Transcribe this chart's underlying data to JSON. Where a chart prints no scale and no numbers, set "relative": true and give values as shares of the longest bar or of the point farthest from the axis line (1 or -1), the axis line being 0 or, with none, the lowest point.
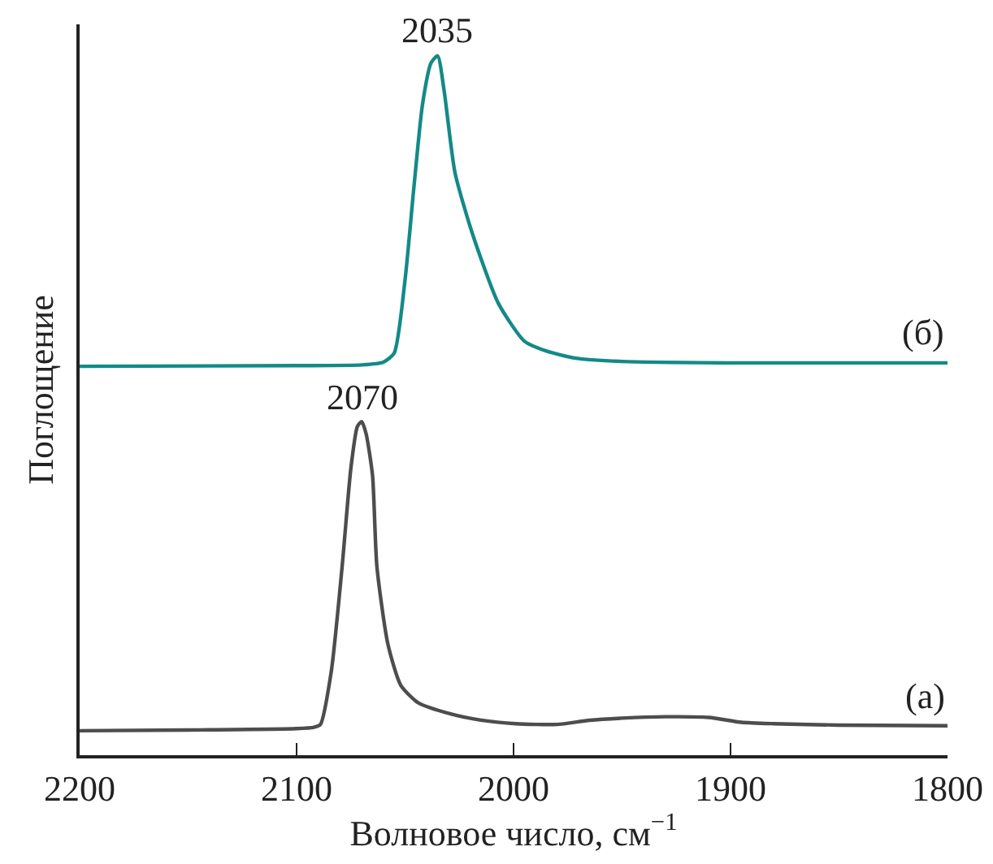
{
  "chart_data": {
    "type": "line",
    "relative": true,
    "xlabel": "Волновое число, см$^{−1}$",
    "ylabel": "Поглощение",
    "xlim": [
      2200,
      1800
    ],
    "xticks": [
      2200,
      2100,
      2000,
      1900,
      1800
    ],
    "grid": false,
    "legend": false,
    "marker": "none",
    "line_style": "solid",
    "annotations": [
      {
        "text": "2035",
        "x": 2035,
        "y": 1.0
      },
      {
        "text": "2070",
        "x": 2070,
        "y": 0.477
      }
    ],
    "series": [
      {
        "name": "(б)",
        "color": "#138a87",
        "x": [
          2200,
          2100,
          2070,
          2060,
          2055,
          2050,
          2046,
          2042,
          2038,
          2035,
          2032,
          2027,
          2019,
          2007,
          1995,
          1985,
          1972,
          1950,
          1900,
          1850,
          1800
        ],
        "values": [
          0.556,
          0.557,
          0.558,
          0.562,
          0.575,
          0.68,
          0.81,
          0.93,
          0.99,
          1.0,
          0.95,
          0.833,
          0.746,
          0.646,
          0.592,
          0.578,
          0.568,
          0.563,
          0.561,
          0.561,
          0.561
        ]
      },
      {
        "name": "(а)",
        "color": "#4d4d4d",
        "x": [
          2200,
          2150,
          2100,
          2092,
          2089,
          2084,
          2079,
          2075,
          2072,
          2070,
          2068,
          2065,
          2063,
          2058,
          2052,
          2044,
          2029,
          2015,
          1999,
          1980,
          1965,
          1950,
          1930,
          1910,
          1895,
          1880,
          1850,
          1800
        ],
        "values": [
          0.035,
          0.036,
          0.038,
          0.04,
          0.044,
          0.12,
          0.27,
          0.41,
          0.47,
          0.477,
          0.46,
          0.4,
          0.27,
          0.16,
          0.1,
          0.075,
          0.059,
          0.05,
          0.045,
          0.044,
          0.05,
          0.053,
          0.055,
          0.054,
          0.047,
          0.045,
          0.043,
          0.042
        ]
      }
    ]
  }
}
